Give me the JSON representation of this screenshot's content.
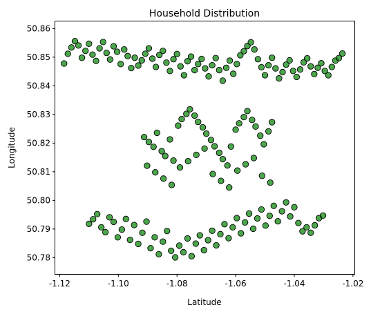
{
  "chart_data": {
    "type": "scatter",
    "title": "Household Distribution",
    "xlabel": "Latitude",
    "ylabel": "Longitude",
    "xlim": [
      -1.1215,
      -1.0195
    ],
    "ylim": [
      50.7743,
      50.8625
    ],
    "xticks": [
      -1.12,
      -1.1,
      -1.08,
      -1.06,
      -1.04,
      -1.02
    ],
    "xtick_labels": [
      "-1.12",
      "-1.10",
      "-1.08",
      "-1.06",
      "-1.04",
      "-1.02"
    ],
    "yticks": [
      50.78,
      50.79,
      50.8,
      50.81,
      50.82,
      50.83,
      50.84,
      50.85,
      50.86
    ],
    "ytick_labels": [
      "50.78",
      "50.79",
      "50.80",
      "50.81",
      "50.82",
      "50.83",
      "50.84",
      "50.85",
      "50.86"
    ],
    "grid": false,
    "marker_color": "#008000",
    "marker_edge_color": "#000000",
    "marker_alpha": 0.7,
    "series": [
      {
        "x": [
          -1.1185,
          -1.1172,
          -1.116,
          -1.1148,
          -1.1136,
          -1.1124,
          -1.1112,
          -1.11,
          -1.1088,
          -1.1076,
          -1.1064,
          -1.1052,
          -1.104,
          -1.1028,
          -1.1016,
          -1.1004,
          -1.0992,
          -1.098,
          -1.0968,
          -1.0956,
          -1.0944,
          -1.0932,
          -1.092,
          -1.0908,
          -1.0896,
          -1.0884,
          -1.0872,
          -1.086,
          -1.0848,
          -1.0836,
          -1.0824,
          -1.0812,
          -1.08,
          -1.0788,
          -1.0776,
          -1.0764,
          -1.0752,
          -1.074,
          -1.0728,
          -1.0716,
          -1.0704,
          -1.0692,
          -1.068,
          -1.0668,
          -1.0656,
          -1.0644,
          -1.0632,
          -1.062,
          -1.0608,
          -1.0596,
          -1.0584,
          -1.0572,
          -1.056,
          -1.0548,
          -1.0536,
          -1.0524,
          -1.0512,
          -1.05,
          -1.0488,
          -1.0476,
          -1.0464,
          -1.0452,
          -1.044,
          -1.0428,
          -1.0416,
          -1.0404,
          -1.0392,
          -1.038,
          -1.0368,
          -1.0356,
          -1.0344,
          -1.0332,
          -1.032,
          -1.0308,
          -1.0296,
          -1.0284,
          -1.0272,
          -1.026,
          -1.0248,
          -1.0236
        ],
        "y": [
          50.8478,
          50.8512,
          50.8534,
          50.8556,
          50.8541,
          50.8498,
          50.8522,
          50.8547,
          50.8509,
          50.8487,
          50.8531,
          50.8553,
          50.8515,
          50.8492,
          50.8538,
          50.8519,
          50.8476,
          50.8527,
          50.8504,
          50.8462,
          50.8498,
          50.8471,
          50.8489,
          50.8512,
          50.8531,
          50.8495,
          50.8466,
          50.8508,
          50.8522,
          50.8481,
          50.8452,
          50.8493,
          50.8511,
          50.8468,
          50.8437,
          50.8486,
          50.8502,
          50.8455,
          50.8476,
          50.8494,
          50.8461,
          50.8433,
          50.8472,
          50.8497,
          50.8455,
          50.8418,
          50.8463,
          50.8488,
          50.8442,
          50.8476,
          50.8507,
          50.8521,
          50.8539,
          50.8552,
          50.8527,
          50.8493,
          50.8465,
          50.8437,
          50.8472,
          50.8498,
          50.8461,
          50.8426,
          50.8448,
          50.8474,
          50.8489,
          50.8452,
          50.8431,
          50.8457,
          50.8482,
          50.8496,
          50.8468,
          50.8441,
          50.8463,
          50.8479,
          50.8452,
          50.8437,
          50.8466,
          50.8488,
          50.8497,
          50.8513
        ]
      },
      {
        "x": [
          -1.0912,
          -1.0896,
          -1.088,
          -1.0868,
          -1.0852,
          -1.084,
          -1.0824,
          -1.0812,
          -1.0796,
          -1.0784,
          -1.0768,
          -1.0756,
          -1.074,
          -1.0728,
          -1.0712,
          -1.07,
          -1.0684,
          -1.0672,
          -1.0656,
          -1.0644,
          -1.0628,
          -1.0616,
          -1.06,
          -1.0588,
          -1.0572,
          -1.056,
          -1.0544,
          -1.0532,
          -1.0516,
          -1.0504,
          -1.0488,
          -1.0476,
          -1.0902,
          -1.0874,
          -1.0846,
          -1.0818,
          -1.079,
          -1.0762,
          -1.0734,
          -1.0706,
          -1.0678,
          -1.065,
          -1.0622,
          -1.0594,
          -1.0566,
          -1.0538,
          -1.051,
          -1.0482
        ],
        "y": [
          50.8221,
          50.8204,
          50.8187,
          50.8236,
          50.8172,
          50.8155,
          50.8213,
          50.8139,
          50.8261,
          50.8284,
          50.8302,
          50.8318,
          50.8296,
          50.8274,
          50.8255,
          50.8233,
          50.8211,
          50.8189,
          50.8166,
          50.8144,
          50.8122,
          50.8188,
          50.8247,
          50.8269,
          50.8291,
          50.8312,
          50.8281,
          50.8258,
          50.8226,
          50.8196,
          50.8241,
          50.8273,
          50.8121,
          50.8098,
          50.8076,
          50.8054,
          50.8115,
          50.8137,
          50.8159,
          50.8181,
          50.8092,
          50.8068,
          50.8045,
          50.8104,
          50.8126,
          50.8148,
          50.8086,
          50.8062
        ]
      },
      {
        "x": [
          -1.11,
          -1.1086,
          -1.1072,
          -1.1058,
          -1.1044,
          -1.103,
          -1.1016,
          -1.1002,
          -1.0988,
          -1.0974,
          -1.096,
          -1.0946,
          -1.0932,
          -1.0918,
          -1.0904,
          -1.089,
          -1.0876,
          -1.0862,
          -1.0848,
          -1.0834,
          -1.082,
          -1.0806,
          -1.0792,
          -1.0778,
          -1.0764,
          -1.075,
          -1.0736,
          -1.0722,
          -1.0708,
          -1.0694,
          -1.068,
          -1.0666,
          -1.0652,
          -1.0638,
          -1.0624,
          -1.061,
          -1.0596,
          -1.0582,
          -1.0568,
          -1.0554,
          -1.054,
          -1.0526,
          -1.0512,
          -1.0498,
          -1.0484,
          -1.047,
          -1.0456,
          -1.0442,
          -1.0428,
          -1.0414,
          -1.04,
          -1.0386,
          -1.0372,
          -1.0358,
          -1.0344,
          -1.033,
          -1.0316,
          -1.0302
        ],
        "y": [
          50.7918,
          50.7934,
          50.7952,
          50.7906,
          50.7889,
          50.7941,
          50.7925,
          50.7871,
          50.7898,
          50.7935,
          50.7862,
          50.7914,
          50.7848,
          50.7887,
          50.7926,
          50.7833,
          50.7871,
          50.7812,
          50.7856,
          50.7893,
          50.7824,
          50.7801,
          50.7842,
          50.7819,
          50.7867,
          50.7805,
          50.7849,
          50.7878,
          50.7826,
          50.7861,
          50.7894,
          50.7843,
          50.7882,
          50.7917,
          50.7868,
          50.7906,
          50.7938,
          50.7885,
          50.7923,
          50.7954,
          50.7901,
          50.7937,
          50.7968,
          50.7912,
          50.7946,
          50.7981,
          50.7927,
          50.7962,
          50.7993,
          50.7944,
          50.7976,
          50.7921,
          50.7892,
          50.7906,
          50.7887,
          50.7913,
          50.7938,
          50.7947
        ]
      }
    ]
  }
}
